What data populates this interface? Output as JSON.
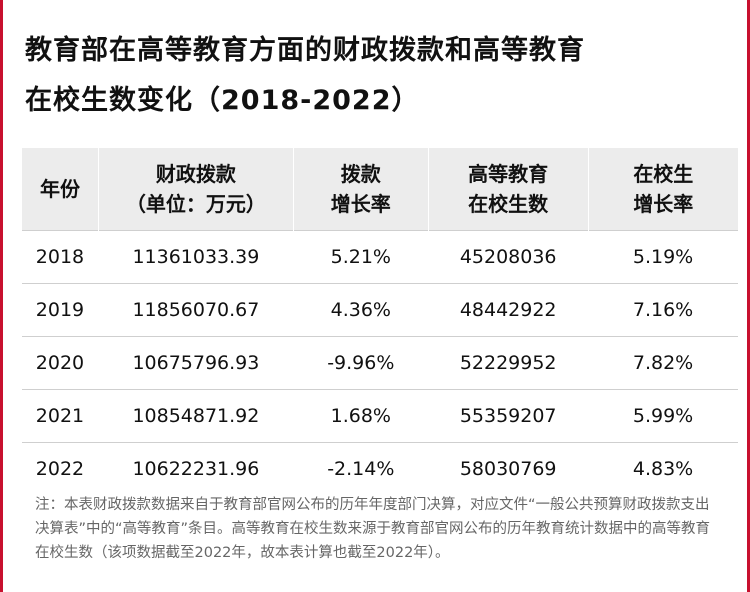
{
  "header": {
    "title_lines": [
      "教育部在高等教育方面的财政拨款和高等教育",
      "在校生数变化（2018-2022）"
    ]
  },
  "table": {
    "columns": [
      [
        "年份"
      ],
      [
        "财政拨款",
        "（单位：万元）"
      ],
      [
        "拨款",
        "增长率"
      ],
      [
        "高等教育",
        "在校生数"
      ],
      [
        "在校生",
        "增长率"
      ]
    ],
    "rows": [
      [
        "2018",
        "11361033.39",
        "5.21%",
        "45208036",
        "5.19%"
      ],
      [
        "2019",
        "11856070.67",
        "4.36%",
        "48442922",
        "7.16%"
      ],
      [
        "2020",
        "10675796.93",
        "-9.96%",
        "52229952",
        "7.82%"
      ],
      [
        "2021",
        "10854871.92",
        "1.68%",
        "55359207",
        "5.99%"
      ],
      [
        "2022",
        "10622231.96",
        "-2.14%",
        "58030769",
        "4.83%"
      ]
    ]
  },
  "note": "注：本表财政拨款数据来自于教育部官网公布的历年年度部门决算，对应文件“一般公共预算财政拨款支出决算表”中的“高等教育”条目。高等教育在校生数来源于教育部官网公布的历年教育统计数据中的高等教育在校生数（该项数据截至2022年，故本表计算也截至2022年）。"
}
